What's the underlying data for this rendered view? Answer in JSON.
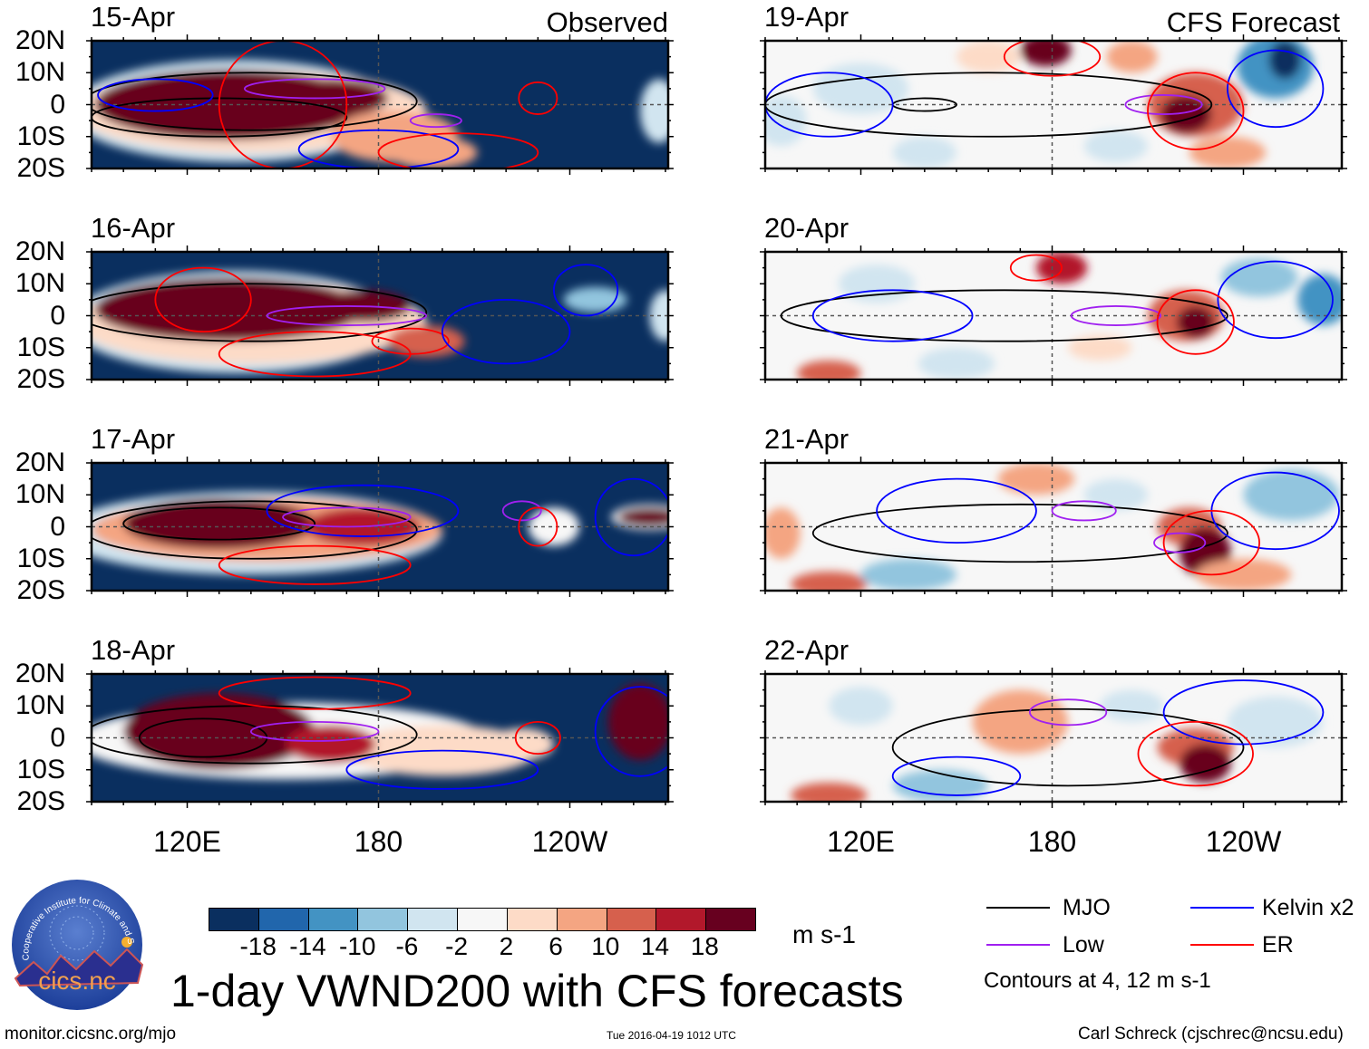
{
  "header": {
    "observed_label": "Observed",
    "forecast_label": "CFS Forecast"
  },
  "chart_data": {
    "type": "heatmap",
    "title": "1-day VWND200 with CFS forecasts",
    "variable_units": "m s-1",
    "lat_ticks": [
      "20N",
      "10N",
      "0",
      "10S",
      "20S"
    ],
    "lon_ticks": [
      "120E",
      "180",
      "120W"
    ],
    "lon_tick_values": [
      120,
      180,
      240
    ],
    "lon_range": [
      90,
      271
    ],
    "lat_range": [
      -20,
      20
    ],
    "colorbar": {
      "levels": [
        "-18",
        "-14",
        "-10",
        "-6",
        "-2",
        "2",
        "6",
        "10",
        "14",
        "18"
      ],
      "colors": [
        "#0a2f5f",
        "#2166ac",
        "#4393c3",
        "#92c5de",
        "#d1e5f0",
        "#f7f7f7",
        "#fddbc7",
        "#f4a582",
        "#d6604d",
        "#b2182b",
        "#67001f"
      ]
    },
    "contour_colors": {
      "MJO": "#000000",
      "Kelvin": "#0000ff",
      "Low": "#a020f0",
      "ER": "#ff0000"
    },
    "panels": [
      {
        "date": "15-Apr",
        "column": "observed",
        "background": -22,
        "blobs": [
          [
            135,
            -2,
            52,
            16,
            -3
          ],
          [
            140,
            -2,
            55,
            13,
            5
          ],
          [
            133,
            0,
            42,
            11,
            22
          ],
          [
            165,
            2,
            18,
            6,
            20
          ],
          [
            185,
            -10,
            20,
            8,
            8
          ],
          [
            197,
            -15,
            14,
            5,
            6
          ],
          [
            268,
            -2,
            6,
            10,
            -5
          ]
        ],
        "contours": [
          [
            "MJO",
            140,
            1,
            52,
            9
          ],
          [
            "MJO",
            130,
            -4,
            40,
            6
          ],
          [
            "Low",
            160,
            5,
            22,
            3
          ],
          [
            "Low",
            198,
            -5,
            8,
            2
          ],
          [
            "ER",
            150,
            0,
            20,
            20
          ],
          [
            "ER",
            230,
            2,
            6,
            5
          ],
          [
            "Kelvin",
            110,
            3,
            18,
            5
          ],
          [
            "Kelvin",
            180,
            -14,
            25,
            6
          ],
          [
            "ER",
            205,
            -15,
            25,
            6
          ]
        ]
      },
      {
        "date": "16-Apr",
        "column": "observed",
        "background": -22,
        "blobs": [
          [
            135,
            -2,
            52,
            16,
            -3
          ],
          [
            140,
            -2,
            55,
            13,
            5
          ],
          [
            133,
            2,
            42,
            10,
            22
          ],
          [
            175,
            3,
            15,
            5,
            18
          ],
          [
            195,
            -8,
            12,
            5,
            12
          ],
          [
            248,
            5,
            10,
            4,
            -10
          ],
          [
            270,
            0,
            5,
            8,
            -4
          ]
        ],
        "contours": [
          [
            "MJO",
            140,
            1,
            55,
            9
          ],
          [
            "Low",
            170,
            0,
            25,
            3
          ],
          [
            "ER",
            160,
            -12,
            30,
            7
          ],
          [
            "ER",
            190,
            -8,
            12,
            4
          ],
          [
            "Kelvin",
            220,
            -5,
            20,
            10
          ],
          [
            "Kelvin",
            245,
            8,
            10,
            8
          ],
          [
            "ER",
            125,
            5,
            15,
            10
          ]
        ]
      },
      {
        "date": "17-Apr",
        "column": "observed",
        "background": -22,
        "blobs": [
          [
            140,
            -2,
            60,
            13,
            -3
          ],
          [
            145,
            -1,
            55,
            10,
            6
          ],
          [
            130,
            1,
            30,
            8,
            22
          ],
          [
            175,
            0,
            18,
            6,
            16
          ],
          [
            265,
            3,
            12,
            4,
            -2
          ],
          [
            265,
            3,
            10,
            3,
            18
          ],
          [
            235,
            0,
            8,
            6,
            -2
          ]
        ],
        "contours": [
          [
            "MJO",
            140,
            -1,
            52,
            9
          ],
          [
            "MJO",
            130,
            1,
            30,
            5
          ],
          [
            "Low",
            170,
            3,
            20,
            3
          ],
          [
            "Low",
            225,
            5,
            6,
            3
          ],
          [
            "Kelvin",
            175,
            5,
            30,
            8
          ],
          [
            "Kelvin",
            260,
            3,
            12,
            12
          ],
          [
            "ER",
            230,
            0,
            6,
            6
          ],
          [
            "ER",
            160,
            -12,
            30,
            6
          ]
        ]
      },
      {
        "date": "18-Apr",
        "column": "observed",
        "background": -22,
        "blobs": [
          [
            150,
            -1,
            65,
            12,
            -2
          ],
          [
            200,
            -4,
            30,
            8,
            2
          ],
          [
            130,
            2,
            30,
            12,
            22
          ],
          [
            165,
            -2,
            14,
            6,
            14
          ],
          [
            262,
            5,
            10,
            12,
            22
          ],
          [
            225,
            -2,
            10,
            5,
            4
          ]
        ],
        "contours": [
          [
            "MJO",
            140,
            1,
            52,
            9
          ],
          [
            "MJO",
            125,
            0,
            20,
            6
          ],
          [
            "Low",
            160,
            2,
            20,
            3
          ],
          [
            "ER",
            230,
            0,
            7,
            5
          ],
          [
            "Kelvin",
            262,
            2,
            14,
            14
          ],
          [
            "Kelvin",
            200,
            -10,
            30,
            6
          ],
          [
            "ER",
            160,
            14,
            30,
            5
          ]
        ]
      },
      {
        "date": "19-Apr",
        "column": "forecast",
        "background": 0,
        "blobs": [
          [
            178,
            17,
            8,
            5,
            20
          ],
          [
            225,
            0,
            15,
            10,
            12
          ],
          [
            222,
            -3,
            8,
            6,
            18
          ],
          [
            250,
            12,
            12,
            10,
            -14
          ],
          [
            253,
            14,
            5,
            6,
            -22
          ],
          [
            120,
            5,
            15,
            8,
            -4
          ],
          [
            140,
            -15,
            10,
            5,
            -6
          ],
          [
            200,
            -13,
            10,
            5,
            -4
          ],
          [
            95,
            -5,
            8,
            8,
            -4
          ],
          [
            160,
            15,
            10,
            5,
            4
          ],
          [
            205,
            15,
            8,
            5,
            6
          ],
          [
            235,
            -15,
            12,
            5,
            8
          ]
        ],
        "contours": [
          [
            "MJO",
            160,
            0,
            70,
            10
          ],
          [
            "MJO",
            140,
            0,
            10,
            2
          ],
          [
            "Low",
            215,
            0,
            12,
            3
          ],
          [
            "Kelvin",
            110,
            0,
            20,
            10
          ],
          [
            "Kelvin",
            250,
            5,
            15,
            12
          ],
          [
            "ER",
            225,
            -2,
            15,
            12
          ],
          [
            "ER",
            180,
            15,
            15,
            6
          ]
        ]
      },
      {
        "date": "20-Apr",
        "column": "forecast",
        "background": 0,
        "blobs": [
          [
            183,
            15,
            8,
            5,
            16
          ],
          [
            222,
            0,
            12,
            8,
            10
          ],
          [
            225,
            -2,
            6,
            5,
            18
          ],
          [
            110,
            -18,
            10,
            4,
            12
          ],
          [
            265,
            5,
            8,
            8,
            -14
          ],
          [
            245,
            12,
            12,
            6,
            -8
          ],
          [
            150,
            -15,
            12,
            5,
            -6
          ],
          [
            125,
            10,
            12,
            6,
            -4
          ],
          [
            195,
            -10,
            10,
            4,
            4
          ]
        ],
        "contours": [
          [
            "MJO",
            165,
            0,
            70,
            8
          ],
          [
            "Low",
            200,
            0,
            14,
            3
          ],
          [
            "Kelvin",
            130,
            0,
            25,
            8
          ],
          [
            "Kelvin",
            250,
            5,
            18,
            12
          ],
          [
            "ER",
            225,
            -2,
            12,
            10
          ],
          [
            "ER",
            175,
            15,
            8,
            4
          ]
        ]
      },
      {
        "date": "21-Apr",
        "column": "forecast",
        "background": 0,
        "blobs": [
          [
            223,
            0,
            10,
            6,
            12
          ],
          [
            228,
            -8,
            8,
            8,
            18
          ],
          [
            240,
            -15,
            15,
            5,
            8
          ],
          [
            175,
            15,
            12,
            5,
            6
          ],
          [
            110,
            -18,
            12,
            4,
            10
          ],
          [
            135,
            -15,
            15,
            5,
            -8
          ],
          [
            255,
            10,
            15,
            8,
            -8
          ],
          [
            95,
            -2,
            6,
            8,
            6
          ],
          [
            200,
            10,
            10,
            5,
            -4
          ]
        ],
        "contours": [
          [
            "MJO",
            170,
            -2,
            65,
            9
          ],
          [
            "Low",
            190,
            5,
            10,
            3
          ],
          [
            "Low",
            220,
            -5,
            8,
            3
          ],
          [
            "Kelvin",
            150,
            5,
            25,
            10
          ],
          [
            "Kelvin",
            250,
            5,
            20,
            12
          ],
          [
            "ER",
            230,
            -5,
            15,
            10
          ]
        ]
      },
      {
        "date": "22-Apr",
        "column": "forecast",
        "background": 0,
        "blobs": [
          [
            225,
            -3,
            12,
            6,
            12
          ],
          [
            228,
            -8,
            8,
            6,
            18
          ],
          [
            170,
            5,
            15,
            10,
            6
          ],
          [
            110,
            -18,
            12,
            4,
            10
          ],
          [
            145,
            -15,
            15,
            5,
            -10
          ],
          [
            250,
            5,
            15,
            8,
            -6
          ],
          [
            205,
            10,
            10,
            5,
            -6
          ],
          [
            120,
            10,
            10,
            6,
            -4
          ]
        ],
        "contours": [
          [
            "MJO",
            185,
            -3,
            55,
            12
          ],
          [
            "Low",
            185,
            8,
            12,
            4
          ],
          [
            "Kelvin",
            240,
            8,
            25,
            10
          ],
          [
            "Kelvin",
            150,
            -12,
            20,
            6
          ],
          [
            "ER",
            225,
            -5,
            18,
            10
          ]
        ]
      }
    ]
  },
  "legend": {
    "mjo": "MJO",
    "kelvin": "Kelvin x2",
    "low": "Low",
    "er": "ER",
    "contours_note": "Contours at 4, 12 m s-1"
  },
  "logo": {
    "text": "cics.nc",
    "ring_text": "Cooperative Institute for Climate and Satellites"
  },
  "footer": {
    "url": "monitor.cicsnc.org/mjo",
    "timestamp": "Tue 2016-04-19 1012 UTC",
    "author": "Carl Schreck (cjschrec@ncsu.edu)"
  }
}
